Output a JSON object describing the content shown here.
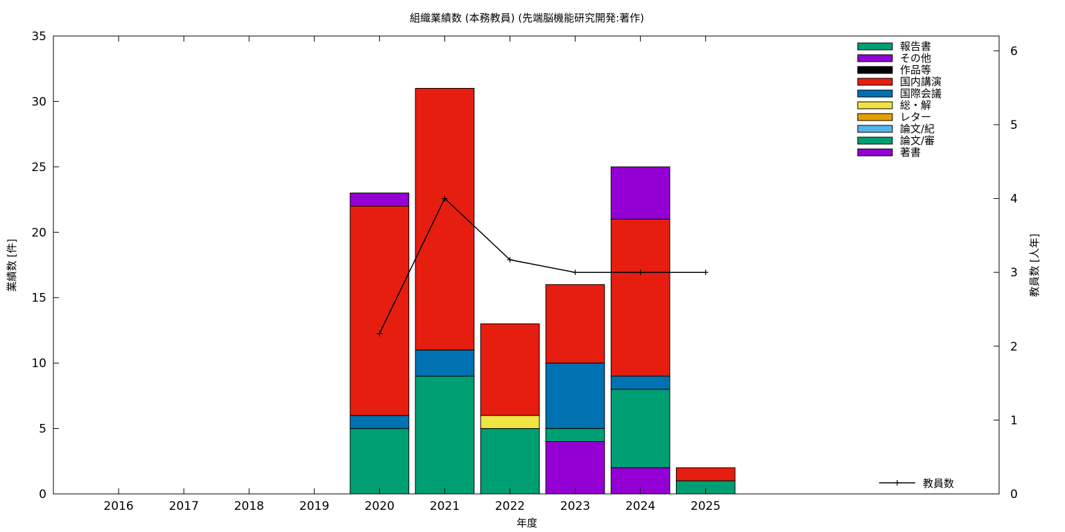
{
  "chart_data": {
    "type": "bar",
    "title": "組織業績数 (本務教員) (先端脳機能研究開発:著作)",
    "xlabel": "年度",
    "ylabel": "業績数 [件]",
    "y2label": "教員数 [人年]",
    "categories": [
      "2016",
      "2017",
      "2018",
      "2019",
      "2020",
      "2021",
      "2022",
      "2023",
      "2024",
      "2025"
    ],
    "ylim": [
      0,
      35
    ],
    "y2lim": [
      0,
      6.2
    ],
    "yticks": [
      0,
      5,
      10,
      15,
      20,
      25,
      30,
      35
    ],
    "y2ticks": [
      0,
      1,
      2,
      3,
      4,
      5,
      6
    ],
    "grid": false,
    "stacked": true,
    "legend_position": "top-right",
    "series": [
      {
        "name": "著書",
        "color": "#9400d3",
        "values": [
          0,
          0,
          0,
          0,
          0,
          0,
          0,
          4,
          2,
          0
        ]
      },
      {
        "name": "論文/審",
        "color": "#009e73",
        "values": [
          0,
          0,
          0,
          0,
          5,
          9,
          5,
          1,
          6,
          1
        ]
      },
      {
        "name": "論文/紀",
        "color": "#56b4e9",
        "values": [
          0,
          0,
          0,
          0,
          0,
          0,
          0,
          0,
          0,
          0
        ]
      },
      {
        "name": "レター",
        "color": "#e69f00",
        "values": [
          0,
          0,
          0,
          0,
          0,
          0,
          0,
          0,
          0,
          0
        ]
      },
      {
        "name": "総・解",
        "color": "#f0e442",
        "values": [
          0,
          0,
          0,
          0,
          0,
          0,
          1,
          0,
          0,
          0
        ]
      },
      {
        "name": "国際会議",
        "color": "#0072b2",
        "values": [
          0,
          0,
          0,
          0,
          1,
          2,
          0,
          5,
          1,
          0
        ]
      },
      {
        "name": "国内講演",
        "color": "#e51e10",
        "values": [
          0,
          0,
          0,
          0,
          16,
          20,
          7,
          6,
          12,
          1
        ]
      },
      {
        "name": "作品等",
        "color": "#000000",
        "values": [
          0,
          0,
          0,
          0,
          0,
          0,
          0,
          0,
          0,
          0
        ]
      },
      {
        "name": "その他",
        "color": "#9400d3",
        "values": [
          0,
          0,
          0,
          0,
          1,
          0,
          0,
          0,
          4,
          0
        ]
      },
      {
        "name": "報告書",
        "color": "#009e73",
        "values": [
          0,
          0,
          0,
          0,
          0,
          0,
          0,
          0,
          0,
          0
        ]
      }
    ],
    "line_series": {
      "name": "教員数",
      "axis": "y2",
      "color": "#000000",
      "x": [
        "2020",
        "2021",
        "2022",
        "2023",
        "2024",
        "2025"
      ],
      "values": [
        2.17,
        4.0,
        3.17,
        3.0,
        3.0,
        3.0
      ]
    }
  }
}
